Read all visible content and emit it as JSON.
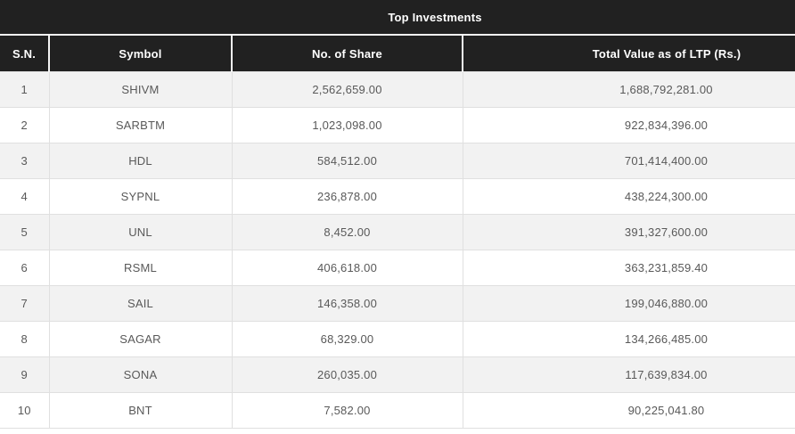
{
  "table": {
    "title": "Top Investments",
    "columns": [
      "S.N.",
      "Symbol",
      "No. of Share",
      "Total Value as of LTP (Rs.)"
    ],
    "rows": [
      [
        "1",
        "SHIVM",
        "2,562,659.00",
        "1,688,792,281.00"
      ],
      [
        "2",
        "SARBTM",
        "1,023,098.00",
        "922,834,396.00"
      ],
      [
        "3",
        "HDL",
        "584,512.00",
        "701,414,400.00"
      ],
      [
        "4",
        "SYPNL",
        "236,878.00",
        "438,224,300.00"
      ],
      [
        "5",
        "UNL",
        "8,452.00",
        "391,327,600.00"
      ],
      [
        "6",
        "RSML",
        "406,618.00",
        "363,231,859.40"
      ],
      [
        "7",
        "SAIL",
        "146,358.00",
        "199,046,880.00"
      ],
      [
        "8",
        "SAGAR",
        "68,329.00",
        "134,266,485.00"
      ],
      [
        "9",
        "SONA",
        "260,035.00",
        "117,639,834.00"
      ],
      [
        "10",
        "BNT",
        "7,582.00",
        "90,225,041.80"
      ]
    ],
    "colors": {
      "header_bg": "#212121",
      "header_text": "#ffffff",
      "header_divider": "#f5f5f5",
      "row_alt_bg": "#f2f2f2",
      "row_bg": "#ffffff",
      "border": "#e0e0e0",
      "text": "#595959"
    }
  }
}
